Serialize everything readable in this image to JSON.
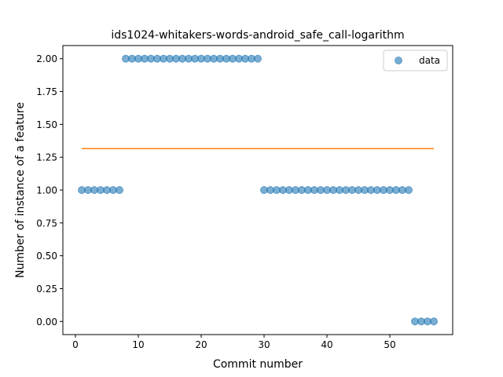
{
  "chart_data": {
    "type": "scatter",
    "title": "ids1024-whitakers-words-android_safe_call-logarithm",
    "xlabel": "Commit number",
    "ylabel": "Number of instance of a feature",
    "xlim": [
      -2,
      60
    ],
    "ylim": [
      -0.1,
      2.1
    ],
    "xticks": [
      0,
      10,
      20,
      30,
      40,
      50
    ],
    "yticks": [
      0.0,
      0.25,
      0.5,
      0.75,
      1.0,
      1.25,
      1.5,
      1.75,
      2.0
    ],
    "xtick_labels": [
      "0",
      "10",
      "20",
      "30",
      "40",
      "50"
    ],
    "ytick_labels": [
      "0.00",
      "0.25",
      "0.50",
      "0.75",
      "1.00",
      "1.25",
      "1.50",
      "1.75",
      "2.00"
    ],
    "grid": false,
    "legend_position": "top-right",
    "series": [
      {
        "name": "data",
        "kind": "scatter",
        "color": "#1f77b4",
        "x": [
          1,
          2,
          3,
          4,
          5,
          6,
          7,
          8,
          9,
          10,
          11,
          12,
          13,
          14,
          15,
          16,
          17,
          18,
          19,
          20,
          21,
          22,
          23,
          24,
          25,
          26,
          27,
          28,
          29,
          30,
          31,
          32,
          33,
          34,
          35,
          36,
          37,
          38,
          39,
          40,
          41,
          42,
          43,
          44,
          45,
          46,
          47,
          48,
          49,
          50,
          51,
          52,
          53,
          54,
          55,
          56,
          57
        ],
        "y": [
          1,
          1,
          1,
          1,
          1,
          1,
          1,
          2,
          2,
          2,
          2,
          2,
          2,
          2,
          2,
          2,
          2,
          2,
          2,
          2,
          2,
          2,
          2,
          2,
          2,
          2,
          2,
          2,
          2,
          1,
          1,
          1,
          1,
          1,
          1,
          1,
          1,
          1,
          1,
          1,
          1,
          1,
          1,
          1,
          1,
          1,
          1,
          1,
          1,
          1,
          1,
          1,
          1,
          0,
          0,
          0,
          0
        ]
      },
      {
        "kind": "line",
        "color": "#ff7f0e",
        "x": [
          1,
          57
        ],
        "y": [
          1.315,
          1.315
        ]
      }
    ]
  }
}
